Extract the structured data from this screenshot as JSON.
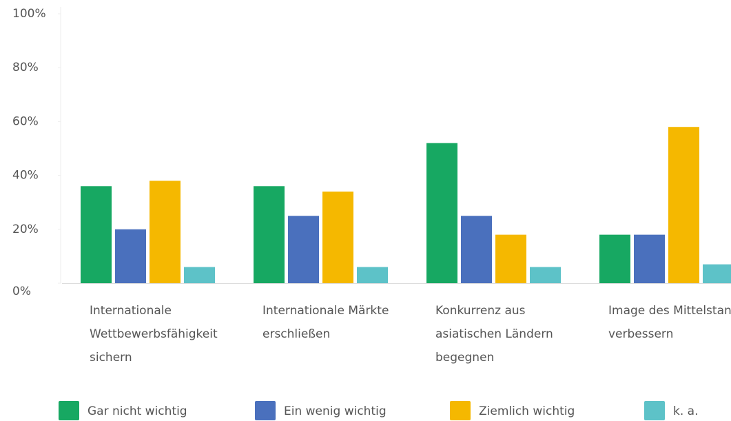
{
  "chart_data": {
    "type": "bar",
    "categories": [
      "Internationale Wettbewerbsfähigkeit sichern",
      "Internationale Märkte erschließen",
      "Konkurrenz aus asiatischen Ländern begegnen",
      "Image des Mittelstands verbessern"
    ],
    "series": [
      {
        "name": "Gar nicht wichtig",
        "color": "#17a862",
        "values": [
          36,
          36,
          52,
          18
        ]
      },
      {
        "name": "Ein wenig wichtig",
        "color": "#4a70bd",
        "values": [
          20,
          25,
          25,
          18
        ]
      },
      {
        "name": "Ziemlich wichtig",
        "color": "#f5b800",
        "values": [
          38,
          34,
          18,
          58
        ]
      },
      {
        "name": "k. a.",
        "color": "#5dc2c8",
        "values": [
          6,
          6,
          6,
          7
        ]
      }
    ],
    "ylim": [
      0,
      100
    ],
    "yticks": [
      {
        "value": 0,
        "label": "0%"
      },
      {
        "value": 20,
        "label": "20%"
      },
      {
        "value": 40,
        "label": "40%"
      },
      {
        "value": 60,
        "label": "60%"
      },
      {
        "value": 80,
        "label": "80%"
      },
      {
        "value": 100,
        "label": "100%"
      }
    ]
  }
}
